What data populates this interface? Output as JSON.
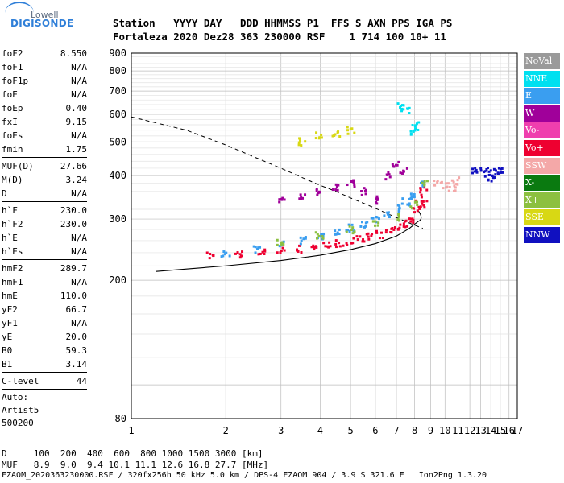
{
  "logo": {
    "top": "Lowell",
    "main": "DIGISONDE"
  },
  "header": {
    "line1": "Station   YYYY DAY   DDD HHMMSS P1  FFS S AXN PPS IGA PS",
    "line2": "Fortaleza 2020 Dez28 363 230000 RSF    1 714 100 10+ 11"
  },
  "params": {
    "group1": [
      {
        "k": "foF2",
        "v": "8.550"
      },
      {
        "k": "foF1",
        "v": "N/A"
      },
      {
        "k": "foF1p",
        "v": "N/A"
      },
      {
        "k": "foE",
        "v": "N/A"
      },
      {
        "k": "foEp",
        "v": "0.40"
      },
      {
        "k": "fxI",
        "v": "9.15"
      },
      {
        "k": "foEs",
        "v": "N/A"
      },
      {
        "k": "fmin",
        "v": "1.75"
      }
    ],
    "group2": [
      {
        "k": "MUF(D)",
        "v": "27.66"
      },
      {
        "k": "M(D)",
        "v": "3.24"
      },
      {
        "k": "D",
        "v": "N/A"
      }
    ],
    "group3": [
      {
        "k": "h`F",
        "v": "230.0"
      },
      {
        "k": "h`F2",
        "v": "230.0"
      },
      {
        "k": "h`E",
        "v": "N/A"
      },
      {
        "k": "h`Es",
        "v": "N/A"
      }
    ],
    "group4": [
      {
        "k": "hmF2",
        "v": "289.7"
      },
      {
        "k": "hmF1",
        "v": "N/A"
      },
      {
        "k": "hmE",
        "v": "110.0"
      },
      {
        "k": "yF2",
        "v": "66.7"
      },
      {
        "k": "yF1",
        "v": "N/A"
      },
      {
        "k": "yE",
        "v": "20.0"
      },
      {
        "k": "B0",
        "v": "59.3"
      },
      {
        "k": "B1",
        "v": "3.14"
      }
    ],
    "group5": [
      {
        "k": "C-level",
        "v": "44"
      }
    ],
    "notes": [
      "Auto:",
      "Artist5",
      "500200"
    ]
  },
  "legend": [
    {
      "label": "NoVal",
      "color": "#9a9a9a"
    },
    {
      "label": "NNE",
      "color": "#00e0f0"
    },
    {
      "label": "E",
      "color": "#3a9ef0"
    },
    {
      "label": "W",
      "color": "#a0009a"
    },
    {
      "label": "Vo-",
      "color": "#ef3fae"
    },
    {
      "label": "Vo+",
      "color": "#ee0030"
    },
    {
      "label": "SSW",
      "color": "#f4a8a8"
    },
    {
      "label": "X-",
      "color": "#0a7a10"
    },
    {
      "label": "X+",
      "color": "#8cc040"
    },
    {
      "label": "SSE",
      "color": "#d8d814"
    },
    {
      "label": "NNW",
      "color": "#1010c0"
    }
  ],
  "footer": {
    "line1": "D     100  200  400  600  800 1000 1500 3000 [km]",
    "line2": "MUF   8.9  9.0  9.4 10.1 11.1 12.6 16.8 27.7 [MHz]",
    "line3": "FZAOM_2020363230000.RSF / 320fx256h 50 kHz 5.0 km / DPS-4 FZAOM 904 / 3.9 S 321.6 E   Ion2Png 1.3.20"
  },
  "chart_data": {
    "type": "scatter",
    "title": "",
    "xlabel": "",
    "ylabel": "",
    "xlim": [
      1,
      17
    ],
    "ylim": [
      80,
      900
    ],
    "x_ticks": [
      1,
      2,
      3,
      4,
      5,
      6,
      7,
      8,
      9,
      10,
      11,
      12,
      13,
      14,
      15,
      16,
      17
    ],
    "y_ticks": [
      80,
      200,
      300,
      400,
      500,
      600,
      700,
      800,
      900
    ],
    "x_scale": "log",
    "y_scale": "log",
    "grid": true,
    "legend_position": "right",
    "series": [
      {
        "name": "Vo+",
        "color": "#ee0030",
        "points": [
          [
            1.8,
            235
          ],
          [
            2.2,
            238
          ],
          [
            2.6,
            240
          ],
          [
            3.0,
            243
          ],
          [
            3.4,
            246
          ],
          [
            3.8,
            249
          ],
          [
            4.2,
            252
          ],
          [
            4.6,
            255
          ],
          [
            5.0,
            259
          ],
          [
            5.4,
            262
          ],
          [
            5.8,
            266
          ],
          [
            6.2,
            271
          ],
          [
            6.6,
            276
          ],
          [
            7.0,
            282
          ],
          [
            7.4,
            290
          ],
          [
            7.8,
            300
          ],
          [
            8.1,
            318
          ],
          [
            8.3,
            345
          ],
          [
            8.5,
            365
          ],
          [
            8.6,
            330
          ]
        ]
      },
      {
        "name": "E",
        "color": "#3a9ef0",
        "points": [
          [
            2.0,
            240
          ],
          [
            2.5,
            245
          ],
          [
            3.0,
            252
          ],
          [
            3.5,
            260
          ],
          [
            4.0,
            268
          ],
          [
            4.5,
            275
          ],
          [
            5.0,
            283
          ],
          [
            5.5,
            291
          ],
          [
            6.0,
            300
          ],
          [
            6.5,
            311
          ],
          [
            7.0,
            322
          ],
          [
            7.5,
            336
          ],
          [
            8.0,
            352
          ],
          [
            8.4,
            375
          ]
        ]
      },
      {
        "name": "X+",
        "color": "#8cc040",
        "points": [
          [
            3.0,
            258
          ],
          [
            4.0,
            270
          ],
          [
            5.0,
            280
          ],
          [
            6.0,
            290
          ],
          [
            7.0,
            302
          ],
          [
            8.0,
            330
          ],
          [
            8.6,
            380
          ]
        ]
      },
      {
        "name": "W",
        "color": "#a0009a",
        "points": [
          [
            3.0,
            340
          ],
          [
            3.5,
            350
          ],
          [
            4.0,
            360
          ],
          [
            4.5,
            370
          ],
          [
            5.0,
            380
          ],
          [
            5.5,
            360
          ],
          [
            6.0,
            340
          ],
          [
            6.5,
            400
          ],
          [
            7.0,
            430
          ],
          [
            7.4,
            410
          ]
        ]
      },
      {
        "name": "SSW",
        "color": "#f4a8a8",
        "points": [
          [
            9.5,
            380
          ],
          [
            10.0,
            375
          ],
          [
            10.5,
            370
          ],
          [
            10.8,
            385
          ]
        ]
      },
      {
        "name": "NNW",
        "color": "#1010c0",
        "points": [
          [
            12.5,
            410
          ],
          [
            13.3,
            420
          ],
          [
            13.8,
            395
          ],
          [
            14.2,
            410
          ],
          [
            14.6,
            400
          ],
          [
            15.0,
            410
          ]
        ]
      },
      {
        "name": "NNE",
        "color": "#00e0f0",
        "points": [
          [
            7.2,
            630
          ],
          [
            7.5,
            620
          ],
          [
            8.0,
            530
          ],
          [
            8.1,
            560
          ]
        ]
      },
      {
        "name": "SSE",
        "color": "#d8d814",
        "points": [
          [
            3.5,
            500
          ],
          [
            4.0,
            520
          ],
          [
            4.5,
            530
          ],
          [
            5.0,
            540
          ]
        ]
      }
    ],
    "fitted_profile": [
      [
        1.2,
        212
      ],
      [
        2.0,
        220
      ],
      [
        3.0,
        228
      ],
      [
        4.0,
        236
      ],
      [
        5.0,
        245
      ],
      [
        6.0,
        255
      ],
      [
        7.0,
        268
      ],
      [
        7.7,
        282
      ],
      [
        8.2,
        295
      ]
    ],
    "muf_curve": [
      [
        1.0,
        590
      ],
      [
        1.5,
        540
      ],
      [
        2.0,
        490
      ],
      [
        2.5,
        450
      ],
      [
        3.0,
        420
      ],
      [
        3.5,
        395
      ],
      [
        4.0,
        375
      ],
      [
        4.5,
        360
      ],
      [
        5.0,
        345
      ],
      [
        5.5,
        333
      ],
      [
        6.0,
        322
      ],
      [
        6.5,
        312
      ],
      [
        7.0,
        303
      ],
      [
        7.5,
        295
      ],
      [
        8.0,
        288
      ],
      [
        8.5,
        282
      ]
    ]
  }
}
